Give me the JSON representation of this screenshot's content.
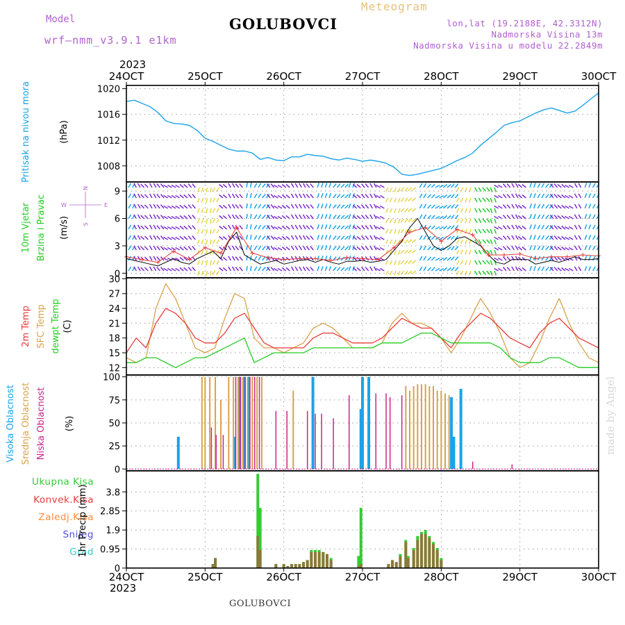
{
  "header": {
    "model_label": "Model",
    "model_name": "wrf–nmm_v3.9.1  e1km",
    "title": "GOLUBOVCI",
    "meteogram_label": "Meteogram",
    "lonlat": "lon,lat (19.2188E, 42.3312N)",
    "elevation": "Nadmorska Visina 13m",
    "model_elevation": "Nadmorska Visina u modelu 22.2849m"
  },
  "time_axis": {
    "year_top": "2023",
    "year_bottom": "2023",
    "ticks": [
      "24OCT",
      "25OCT",
      "26OCT",
      "27OCT",
      "28OCT",
      "29OCT",
      "30OCT"
    ]
  },
  "footer": {
    "station": "GOLUBOVCI",
    "made_by": "made by Angel"
  },
  "colors": {
    "pressure": "#1aa3e8",
    "wind_ne": "#1aa3e8",
    "wind_nw": "#7b2cd0",
    "wind_sw": "#e8d44a",
    "wind_se": "#1bcc2e",
    "wind_speed": "#000000",
    "wind_gust": "#e83a3a",
    "temp_2m": "#e83a3a",
    "temp_sfc": "#d8a24a",
    "temp_dew": "#22cc22",
    "cloud_high": "#1aa3e8",
    "cloud_mid": "#d8a24a",
    "cloud_low": "#cc2288",
    "precip_total": "#33cc33",
    "precip_conv": "#e83a3a",
    "precip_frozen": "#ff8a3a",
    "precip_snow": "#5050dd",
    "precip_graupel": "#33cccc"
  },
  "chart_data": [
    {
      "type": "line",
      "panel": "pressure",
      "label_main": "Pritisak na nivou mora",
      "label_unit": "(hPa)",
      "ylim": [
        1005.5,
        1020.5
      ],
      "yticks": [
        1008,
        1012,
        1016,
        1020
      ],
      "series": [
        {
          "x": [
            0,
            0.1,
            0.2,
            0.3,
            0.4,
            0.5,
            0.6,
            0.7,
            0.8,
            0.9,
            1,
            1.1,
            1.2,
            1.3,
            1.4,
            1.5,
            1.6,
            1.7,
            1.8,
            1.9,
            2,
            2.1,
            2.2,
            2.3,
            2.4,
            2.5,
            2.6,
            2.7,
            2.8,
            2.9,
            3,
            3.1,
            3.2,
            3.3,
            3.4,
            3.5,
            3.6,
            3.7,
            3.8,
            3.9,
            4,
            4.1,
            4.2,
            4.3,
            4.4,
            4.5,
            4.6,
            4.7,
            4.8,
            4.9,
            5,
            5.1,
            5.2,
            5.3,
            5.4,
            5.5,
            5.6,
            5.7,
            5.8,
            5.9,
            6
          ],
          "values": [
            1018.0,
            1018.2,
            1017.7,
            1017.2,
            1016.3,
            1015.0,
            1014.6,
            1014.5,
            1014.3,
            1013.5,
            1012.3,
            1011.8,
            1011.2,
            1010.6,
            1010.3,
            1010.3,
            1010.0,
            1009.0,
            1009.3,
            1008.9,
            1008.8,
            1009.4,
            1009.4,
            1009.8,
            1009.6,
            1009.5,
            1009.1,
            1008.9,
            1009.2,
            1009.0,
            1008.7,
            1008.9,
            1008.7,
            1008.4,
            1007.8,
            1006.7,
            1006.5,
            1006.7,
            1007.0,
            1007.3,
            1007.6,
            1008.2,
            1008.8,
            1009.3,
            1010.0,
            1011.2,
            1012.2,
            1013.2,
            1014.3,
            1014.7,
            1015.0,
            1015.6,
            1016.2,
            1016.7,
            1017.0,
            1016.6,
            1016.2,
            1016.5,
            1017.4,
            1018.4,
            1019.3
          ]
        }
      ]
    },
    {
      "type": "line",
      "panel": "wind",
      "label_main": "10m Vjetar",
      "label_sub": "Brzina i Pravac",
      "label_unit": "(m/s)",
      "compass": [
        "N",
        "W",
        "E",
        "S"
      ],
      "ylim": [
        -0.5,
        10
      ],
      "yticks": [
        0,
        3,
        6,
        9
      ],
      "barb_direction_deg": [
        30,
        330,
        315,
        330,
        320,
        300,
        300,
        310,
        320,
        200,
        190,
        210,
        310,
        330,
        320,
        10,
        30,
        40,
        320,
        300,
        310,
        330,
        330,
        320,
        20,
        20,
        40,
        45,
        20,
        310,
        320,
        330,
        300,
        210,
        200,
        220,
        230,
        30,
        45,
        60,
        50,
        40,
        210,
        200,
        150,
        140,
        160,
        300,
        320,
        330,
        310,
        20,
        30,
        40,
        320,
        310,
        300,
        330,
        20,
        30,
        40
      ],
      "series": [
        {
          "name": "speed",
          "x": [
            0,
            0.1,
            0.2,
            0.3,
            0.4,
            0.5,
            0.6,
            0.7,
            0.8,
            0.9,
            1,
            1.1,
            1.2,
            1.3,
            1.4,
            1.5,
            1.6,
            1.7,
            1.8,
            1.9,
            2,
            2.1,
            2.2,
            2.3,
            2.4,
            2.5,
            2.6,
            2.7,
            2.8,
            2.9,
            3,
            3.1,
            3.2,
            3.3,
            3.4,
            3.5,
            3.6,
            3.7,
            3.8,
            3.9,
            4,
            4.1,
            4.2,
            4.3,
            4.4,
            4.5,
            4.6,
            4.7,
            4.8,
            4.9,
            5,
            5.1,
            5.2,
            5.3,
            5.4,
            5.5,
            5.6,
            5.7,
            5.8,
            5.9,
            6
          ],
          "values": [
            1.6,
            1.4,
            1.2,
            1.0,
            0.8,
            1.2,
            1.6,
            1.2,
            1.0,
            1.6,
            2.0,
            2.4,
            1.6,
            3.5,
            4.5,
            2.0,
            1.5,
            1.0,
            1.2,
            1.4,
            1.0,
            1.2,
            1.4,
            1.5,
            1.2,
            1.5,
            1.2,
            1.0,
            1.3,
            1.3,
            1.4,
            1.2,
            1.3,
            1.5,
            2.5,
            3.5,
            5.0,
            6.0,
            4.5,
            3.0,
            2.5,
            3.0,
            3.8,
            4.0,
            3.5,
            3.0,
            2.0,
            1.2,
            1.0,
            1.5,
            1.5,
            1.5,
            1.0,
            1.2,
            1.4,
            1.2,
            1.5,
            1.8,
            1.5,
            1.5,
            1.6
          ]
        },
        {
          "name": "gust",
          "x": [
            0,
            0.2,
            0.4,
            0.6,
            0.8,
            1,
            1.2,
            1.4,
            1.6,
            1.8,
            2,
            2.2,
            2.4,
            2.6,
            2.8,
            3,
            3.2,
            3.4,
            3.6,
            3.8,
            4,
            4.2,
            4.4,
            4.6,
            4.8,
            5,
            5.2,
            5.4,
            5.6,
            5.8,
            6
          ],
          "values": [
            1.8,
            1.5,
            1.2,
            2.4,
            1.5,
            2.8,
            2.2,
            5.0,
            2.2,
            1.7,
            1.5,
            1.6,
            1.6,
            1.4,
            1.7,
            1.6,
            1.5,
            2.8,
            4.5,
            5.0,
            3.5,
            4.8,
            4.2,
            2.0,
            2.0,
            2.1,
            1.6,
            1.8,
            1.8,
            2.0,
            1.9
          ]
        }
      ]
    },
    {
      "type": "line",
      "panel": "temperature",
      "label_2m": "2m Temp",
      "label_sfc": "SFC Temp",
      "label_dew": "dewpt Temp",
      "label_unit": "(C)",
      "ylim": [
        10.5,
        30.2
      ],
      "yticks": [
        12,
        15,
        18,
        21,
        24,
        27,
        30
      ],
      "series": [
        {
          "name": "2m Temp",
          "x": [
            0,
            0.125,
            0.25,
            0.375,
            0.5,
            0.625,
            0.75,
            0.875,
            1,
            1.125,
            1.25,
            1.375,
            1.5,
            1.625,
            1.75,
            1.875,
            2,
            2.125,
            2.25,
            2.375,
            2.5,
            2.625,
            2.75,
            2.875,
            3,
            3.125,
            3.25,
            3.375,
            3.5,
            3.625,
            3.75,
            3.875,
            4,
            4.125,
            4.25,
            4.375,
            4.5,
            4.625,
            4.75,
            4.875,
            5,
            5.125,
            5.25,
            5.375,
            5.5,
            5.625,
            5.75,
            5.875,
            6
          ],
          "values": [
            15,
            18,
            16,
            21,
            24,
            23,
            21,
            18,
            17,
            17,
            19,
            22,
            23,
            20,
            17,
            16,
            16,
            16,
            16,
            18,
            19,
            19,
            18,
            17,
            17,
            17,
            18,
            20,
            22,
            21,
            20,
            20,
            18,
            16,
            19,
            21,
            23,
            22,
            20,
            18,
            17,
            16,
            19,
            21,
            22,
            20,
            18,
            17,
            16
          ]
        },
        {
          "name": "SFC Temp",
          "x": [
            0,
            0.125,
            0.25,
            0.375,
            0.5,
            0.625,
            0.75,
            0.875,
            1,
            1.125,
            1.25,
            1.375,
            1.5,
            1.625,
            1.75,
            1.875,
            2,
            2.125,
            2.25,
            2.375,
            2.5,
            2.625,
            2.75,
            2.875,
            3,
            3.125,
            3.25,
            3.375,
            3.5,
            3.625,
            3.75,
            3.875,
            4,
            4.125,
            4.25,
            4.375,
            4.5,
            4.625,
            4.75,
            4.875,
            5,
            5.125,
            5.25,
            5.375,
            5.5,
            5.625,
            5.75,
            5.875,
            6
          ],
          "values": [
            14,
            13,
            14,
            24,
            29,
            26,
            21,
            16,
            15,
            16,
            22,
            27,
            26,
            18,
            16,
            16,
            15,
            16,
            17,
            20,
            21,
            20,
            18,
            16,
            16,
            16,
            17,
            21,
            23,
            21,
            21,
            20,
            18,
            15,
            18,
            22,
            26,
            23,
            19,
            14,
            12,
            13,
            17,
            22,
            26,
            21,
            17,
            14,
            13
          ]
        },
        {
          "name": "dewpt Temp",
          "x": [
            0,
            0.125,
            0.25,
            0.375,
            0.5,
            0.625,
            0.75,
            0.875,
            1,
            1.125,
            1.25,
            1.375,
            1.5,
            1.625,
            1.75,
            1.875,
            2,
            2.125,
            2.25,
            2.375,
            2.5,
            2.625,
            2.75,
            2.875,
            3,
            3.125,
            3.25,
            3.375,
            3.5,
            3.625,
            3.75,
            3.875,
            4,
            4.125,
            4.25,
            4.375,
            4.5,
            4.625,
            4.75,
            4.875,
            5,
            5.125,
            5.25,
            5.375,
            5.5,
            5.625,
            5.75,
            5.875,
            6
          ],
          "values": [
            13,
            13,
            14,
            14,
            13,
            12,
            13,
            14,
            14,
            15,
            16,
            17,
            18,
            13,
            14,
            15,
            15,
            15,
            15,
            16,
            16,
            16,
            16,
            16,
            16,
            16,
            17,
            17,
            17,
            18,
            19,
            19,
            18,
            17,
            17,
            17,
            17,
            17,
            16,
            14,
            13,
            13,
            13,
            14,
            14,
            13,
            12,
            12,
            12
          ]
        }
      ]
    },
    {
      "type": "bar",
      "panel": "clouds",
      "label_high": "Visoka Oblacnost",
      "label_mid": "Srednja Oblacnost",
      "label_low": "Niska Oblacnost",
      "label_unit": "(%)",
      "ylim": [
        -2,
        102
      ],
      "yticks": [
        0,
        25,
        50,
        75,
        100
      ],
      "series": [
        {
          "name": "high",
          "x": [
            0.66,
            1.37,
            1.44,
            1.5,
            1.55,
            2.37,
            2.98,
            3.0,
            3.08,
            4.13,
            4.16,
            4.25
          ],
          "values": [
            35,
            35,
            100,
            100,
            100,
            100,
            65,
            100,
            100,
            78,
            35,
            87
          ]
        },
        {
          "name": "mid",
          "x": [
            0.96,
            1.0,
            1.06,
            1.13,
            1.2,
            1.3,
            1.36,
            1.42,
            1.48,
            1.54,
            1.6,
            1.66,
            1.72,
            2.12,
            3.55,
            3.6,
            3.65,
            3.7,
            3.75,
            3.8,
            3.85,
            3.9,
            3.95,
            4.0,
            4.05,
            4.1
          ],
          "values": [
            100,
            100,
            100,
            100,
            75,
            100,
            100,
            100,
            100,
            100,
            100,
            100,
            100,
            85,
            90,
            85,
            90,
            92,
            92,
            92,
            90,
            90,
            85,
            85,
            82,
            80
          ]
        },
        {
          "name": "low",
          "x": [
            1.08,
            1.14,
            1.23,
            1.39,
            1.45,
            1.51,
            1.57,
            1.63,
            1.69,
            1.9,
            2.04,
            2.3,
            2.4,
            2.48,
            2.63,
            2.83,
            3.17,
            3.3,
            3.35,
            3.5,
            4.4,
            4.9
          ],
          "values": [
            45,
            37,
            37,
            100,
            100,
            100,
            100,
            100,
            100,
            63,
            63,
            63,
            60,
            60,
            55,
            80,
            82,
            82,
            78,
            80,
            8,
            5
          ]
        }
      ]
    },
    {
      "type": "bar",
      "panel": "precip",
      "legend": [
        "Ukupna Kisa",
        "Konvek.Kisa",
        "Zaledj.Kisa",
        "Snijeg",
        "Grad"
      ],
      "label_unit": "1hr Precip (mm)",
      "ylim": [
        0,
        4.85
      ],
      "yticks": [
        0,
        0.95,
        1.9,
        2.85,
        3.8
      ],
      "series": [
        {
          "name": "Ukupna Kisa",
          "x": [
            1.1,
            1.13,
            1.67,
            1.7,
            1.9,
            2.0,
            2.05,
            2.1,
            2.15,
            2.2,
            2.25,
            2.3,
            2.35,
            2.4,
            2.45,
            2.5,
            2.55,
            2.6,
            2.95,
            2.98,
            3.33,
            3.38,
            3.43,
            3.48,
            3.55,
            3.58,
            3.65,
            3.7,
            3.75,
            3.8,
            3.85,
            3.9,
            3.95,
            4.0
          ],
          "values": [
            0.2,
            0.5,
            4.7,
            3.0,
            0.2,
            0.2,
            0.1,
            0.2,
            0.2,
            0.2,
            0.3,
            0.4,
            0.9,
            0.9,
            0.9,
            0.8,
            0.7,
            0.5,
            0.6,
            3.0,
            0.2,
            0.4,
            0.3,
            0.7,
            1.4,
            0.6,
            1.0,
            1.6,
            1.8,
            1.9,
            1.6,
            1.3,
            1.0,
            0.5
          ]
        },
        {
          "name": "Konvek.Kisa",
          "x": [
            1.1,
            1.13,
            1.67,
            1.7,
            1.9,
            2.0,
            2.05,
            2.1,
            2.15,
            2.2,
            2.25,
            2.3,
            2.35,
            2.4,
            2.45,
            2.5,
            2.55,
            2.6,
            2.95,
            2.98,
            3.33,
            3.38,
            3.43,
            3.48,
            3.55,
            3.58,
            3.65,
            3.7,
            3.75,
            3.8,
            3.85,
            3.9,
            3.95,
            4.0
          ],
          "values": [
            0.2,
            0.5,
            1.6,
            0.9,
            0.2,
            0.2,
            0.1,
            0.2,
            0.2,
            0.2,
            0.3,
            0.4,
            0.8,
            0.8,
            0.8,
            0.8,
            0.7,
            0.4,
            0.1,
            0.2,
            0.2,
            0.4,
            0.3,
            0.6,
            1.3,
            0.5,
            0.9,
            1.4,
            1.7,
            1.7,
            1.5,
            1.2,
            0.9,
            0.4
          ]
        }
      ]
    }
  ]
}
